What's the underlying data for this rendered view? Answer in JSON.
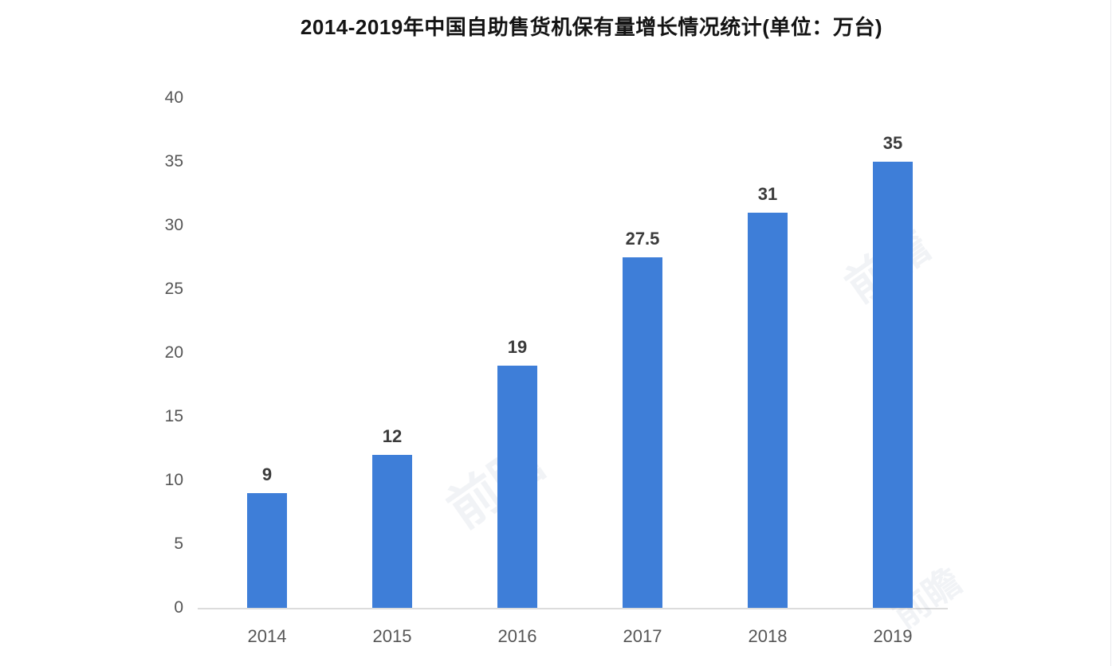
{
  "title": "2014-2019年中国自助售货机保有量增长情况统计(单位：万台)",
  "watermark": "前瞻",
  "colors": {
    "bar": "#3e7ed8",
    "axis_line": "#dcdcdc",
    "y_tick_label": "#555555",
    "x_tick_label": "#565656",
    "data_label": "#3b3b3b",
    "title": "#141414",
    "background": "#ffffff"
  },
  "chart_data": {
    "type": "bar",
    "title": "2014-2019年中国自助售货机保有量增长情况统计(单位：万台)",
    "categories": [
      "2014",
      "2015",
      "2016",
      "2017",
      "2018",
      "2019"
    ],
    "values": [
      9,
      12,
      19,
      27.5,
      31,
      35
    ],
    "data_labels": [
      9,
      12,
      19,
      27.5,
      31,
      35
    ],
    "xlabel": "",
    "ylabel": "",
    "ylim": [
      0,
      40
    ],
    "y_ticks": [
      0,
      5,
      10,
      15,
      20,
      25,
      30,
      35,
      40
    ],
    "grid": false,
    "legend": false,
    "bar_color": "#3e7ed8"
  }
}
